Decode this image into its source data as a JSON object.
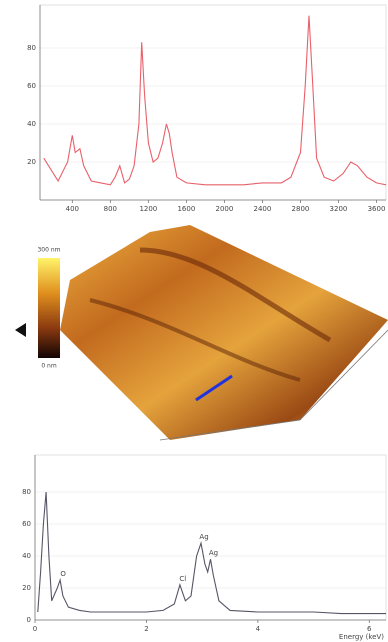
{
  "chart_data": [
    {
      "type": "line",
      "xlim": [
        60,
        3700
      ],
      "xticks": [
        400,
        800,
        1200,
        1600,
        2000,
        2400,
        2800,
        3200,
        3600
      ],
      "ylim": [
        0,
        100
      ],
      "yticks": [
        20,
        40,
        60,
        80
      ],
      "series": [
        {
          "color": "#e8606a",
          "x": [
            100,
            250,
            350,
            400,
            430,
            480,
            520,
            600,
            700,
            800,
            850,
            900,
            950,
            1000,
            1050,
            1100,
            1130,
            1160,
            1200,
            1250,
            1300,
            1350,
            1390,
            1420,
            1450,
            1500,
            1600,
            1800,
            2000,
            2200,
            2400,
            2600,
            2700,
            2800,
            2850,
            2890,
            2930,
            2970,
            3050,
            3150,
            3250,
            3330,
            3400,
            3500,
            3600,
            3700
          ],
          "values": [
            22,
            10,
            20,
            34,
            25,
            27,
            18,
            10,
            9,
            8,
            12,
            18,
            9,
            11,
            18,
            40,
            83,
            55,
            30,
            20,
            22,
            30,
            40,
            35,
            25,
            12,
            9,
            8,
            8,
            8,
            9,
            9,
            12,
            25,
            60,
            97,
            60,
            22,
            12,
            10,
            14,
            20,
            18,
            12,
            9,
            8
          ]
        }
      ]
    },
    {
      "type": "surface",
      "colorbar": [
        "300 nm",
        "0 nm"
      ]
    },
    {
      "type": "line",
      "x_label": "Energy (keV)",
      "xlim": [
        0,
        6.3
      ],
      "xticks": [
        0,
        2,
        4,
        6
      ],
      "ylim": [
        0,
        100
      ],
      "yticks": [
        0,
        20,
        40,
        60,
        80
      ],
      "series": [
        {
          "color": "#556",
          "x": [
            0.05,
            0.1,
            0.15,
            0.2,
            0.25,
            0.3,
            0.4,
            0.45,
            0.5,
            0.6,
            0.8,
            1.0,
            1.5,
            2.0,
            2.3,
            2.5,
            2.6,
            2.7,
            2.8,
            2.9,
            2.98,
            3.05,
            3.1,
            3.15,
            3.2,
            3.3,
            3.5,
            4,
            4.5,
            5,
            5.5,
            6,
            6.3
          ],
          "values": [
            5,
            30,
            60,
            80,
            40,
            12,
            20,
            25,
            15,
            8,
            6,
            5,
            5,
            5,
            6,
            10,
            22,
            12,
            15,
            40,
            48,
            35,
            30,
            38,
            28,
            12,
            6,
            5,
            5,
            5,
            4,
            4,
            4
          ]
        }
      ],
      "annotations": [
        {
          "x": 0.45,
          "y": 25,
          "label": "O"
        },
        {
          "x": 2.6,
          "y": 22,
          "label": "Cl"
        },
        {
          "x": 2.98,
          "y": 48,
          "label": "Ag"
        },
        {
          "x": 3.15,
          "y": 38,
          "label": "Ag"
        }
      ]
    }
  ]
}
